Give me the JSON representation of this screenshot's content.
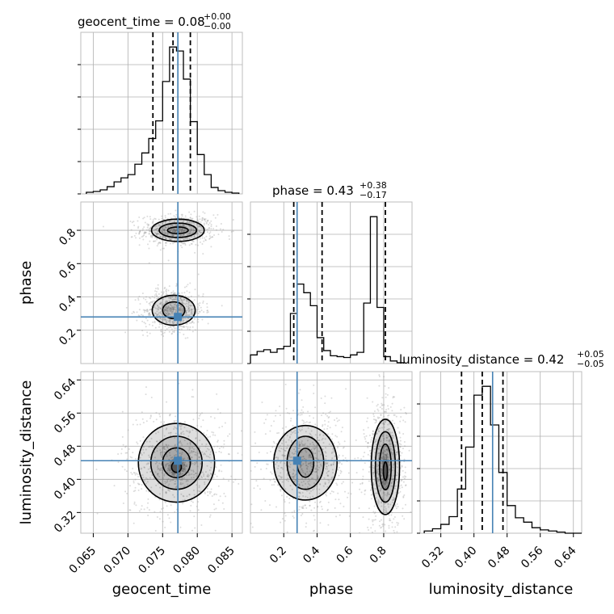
{
  "chart_data": {
    "type": "corner",
    "parameters": [
      "geocent_time",
      "phase",
      "luminosity_distance"
    ],
    "axis_labels": {
      "geocent_time": "geocent_time",
      "phase": "phase",
      "luminosity_distance": "luminosity_distance"
    },
    "titles": {
      "geocent_time": {
        "name": "geocent_time",
        "median": "0.08",
        "plus": "+0.00",
        "minus": "−0.00"
      },
      "phase": {
        "name": "phase",
        "median": "0.43",
        "plus": "+0.38",
        "minus": "−0.17"
      },
      "luminosity_distance": {
        "name": "luminosity_distance",
        "median": "0.42",
        "plus": "+0.05",
        "minus": "−0.05"
      }
    },
    "ranges": {
      "geocent_time": [
        0.0632,
        0.0865
      ],
      "phase": [
        0.0,
        0.97
      ],
      "luminosity_distance": [
        0.27,
        0.66
      ]
    },
    "ticks": {
      "geocent_time": [
        "0.065",
        "0.070",
        "0.075",
        "0.080",
        "0.085"
      ],
      "phase": [
        "0.2",
        "0.4",
        "0.6",
        "0.8"
      ],
      "luminosity_distance": [
        "0.32",
        "0.40",
        "0.48",
        "0.56",
        "0.64"
      ]
    },
    "truths": {
      "geocent_time": 0.0772,
      "phase": 0.28,
      "luminosity_distance": 0.445
    },
    "quantiles": {
      "geocent_time": [
        0.0736,
        0.0765,
        0.079
      ],
      "phase": [
        0.26,
        0.43,
        0.81
      ],
      "luminosity_distance": [
        0.37,
        0.42,
        0.47
      ]
    },
    "histograms": {
      "geocent_time": {
        "edges": [
          0.064,
          0.065,
          0.066,
          0.067,
          0.068,
          0.069,
          0.07,
          0.071,
          0.072,
          0.073,
          0.074,
          0.075,
          0.076,
          0.077,
          0.078,
          0.079,
          0.08,
          0.081,
          0.082,
          0.083,
          0.084,
          0.085,
          0.086
        ],
        "counts": [
          2,
          3,
          5,
          9,
          15,
          20,
          24,
          37,
          51,
          69,
          91,
          140,
          183,
          178,
          143,
          90,
          49,
          24,
          8,
          4,
          2,
          1
        ]
      },
      "phase": {
        "edges": [
          0.0,
          0.04,
          0.08,
          0.12,
          0.16,
          0.2,
          0.24,
          0.28,
          0.32,
          0.36,
          0.4,
          0.44,
          0.48,
          0.52,
          0.56,
          0.6,
          0.64,
          0.68,
          0.72,
          0.76,
          0.8,
          0.84,
          0.88,
          0.92
        ],
        "counts": [
          10,
          14,
          16,
          13,
          17,
          20,
          58,
          92,
          82,
          67,
          30,
          15,
          9,
          8,
          7,
          10,
          13,
          70,
          170,
          65,
          8,
          3,
          1
        ]
      },
      "luminosity_distance": {
        "edges": [
          0.28,
          0.3,
          0.32,
          0.34,
          0.36,
          0.38,
          0.4,
          0.42,
          0.44,
          0.46,
          0.48,
          0.5,
          0.52,
          0.54,
          0.56,
          0.58,
          0.6,
          0.62,
          0.64,
          0.66
        ],
        "counts": [
          2,
          4,
          8,
          15,
          40,
          78,
          125,
          133,
          98,
          55,
          25,
          14,
          10,
          5,
          3,
          2,
          1,
          0,
          0
        ]
      }
    },
    "contours_2d": {
      "phase_vs_geocent_time": [
        {
          "cx": 0.0772,
          "cy": 0.8,
          "rx": 0.0038,
          "ry": 0.067,
          "rot": 0
        },
        {
          "cx": 0.0772,
          "cy": 0.8,
          "rx": 0.0027,
          "ry": 0.043,
          "rot": 0
        },
        {
          "cx": 0.0772,
          "cy": 0.8,
          "rx": 0.0015,
          "ry": 0.02,
          "rot": 0
        },
        {
          "cx": 0.0766,
          "cy": 0.32,
          "rx": 0.0031,
          "ry": 0.09,
          "rot": 0
        },
        {
          "cx": 0.0766,
          "cy": 0.32,
          "rx": 0.0016,
          "ry": 0.05,
          "rot": 0
        }
      ],
      "luminosity_distance_vs_geocent_time": [
        {
          "cx": 0.077,
          "cy": 0.44,
          "rx": 0.0055,
          "ry": 0.095,
          "rot": 0
        },
        {
          "cx": 0.077,
          "cy": 0.44,
          "rx": 0.0037,
          "ry": 0.064,
          "rot": 0
        },
        {
          "cx": 0.077,
          "cy": 0.44,
          "rx": 0.002,
          "ry": 0.036,
          "rot": 0
        },
        {
          "cx": 0.077,
          "cy": 0.43,
          "rx": 0.0007,
          "ry": 0.013,
          "rot": 0
        }
      ],
      "luminosity_distance_vs_phase": [
        {
          "cx": 0.33,
          "cy": 0.44,
          "rx": 0.19,
          "ry": 0.09,
          "rot": 0
        },
        {
          "cx": 0.33,
          "cy": 0.44,
          "rx": 0.11,
          "ry": 0.064,
          "rot": 0
        },
        {
          "cx": 0.33,
          "cy": 0.44,
          "rx": 0.05,
          "ry": 0.035,
          "rot": 0
        },
        {
          "cx": 0.81,
          "cy": 0.43,
          "rx": 0.085,
          "ry": 0.115,
          "rot": 0
        },
        {
          "cx": 0.81,
          "cy": 0.43,
          "rx": 0.06,
          "ry": 0.085,
          "rot": 0
        },
        {
          "cx": 0.81,
          "cy": 0.43,
          "rx": 0.035,
          "ry": 0.055,
          "rot": 0
        },
        {
          "cx": 0.81,
          "cy": 0.42,
          "rx": 0.012,
          "ry": 0.022,
          "rot": 0
        }
      ]
    },
    "grid": true,
    "colors": {
      "truth": "#4682b4",
      "line": "#000000",
      "points": "#9a9a9a"
    }
  }
}
